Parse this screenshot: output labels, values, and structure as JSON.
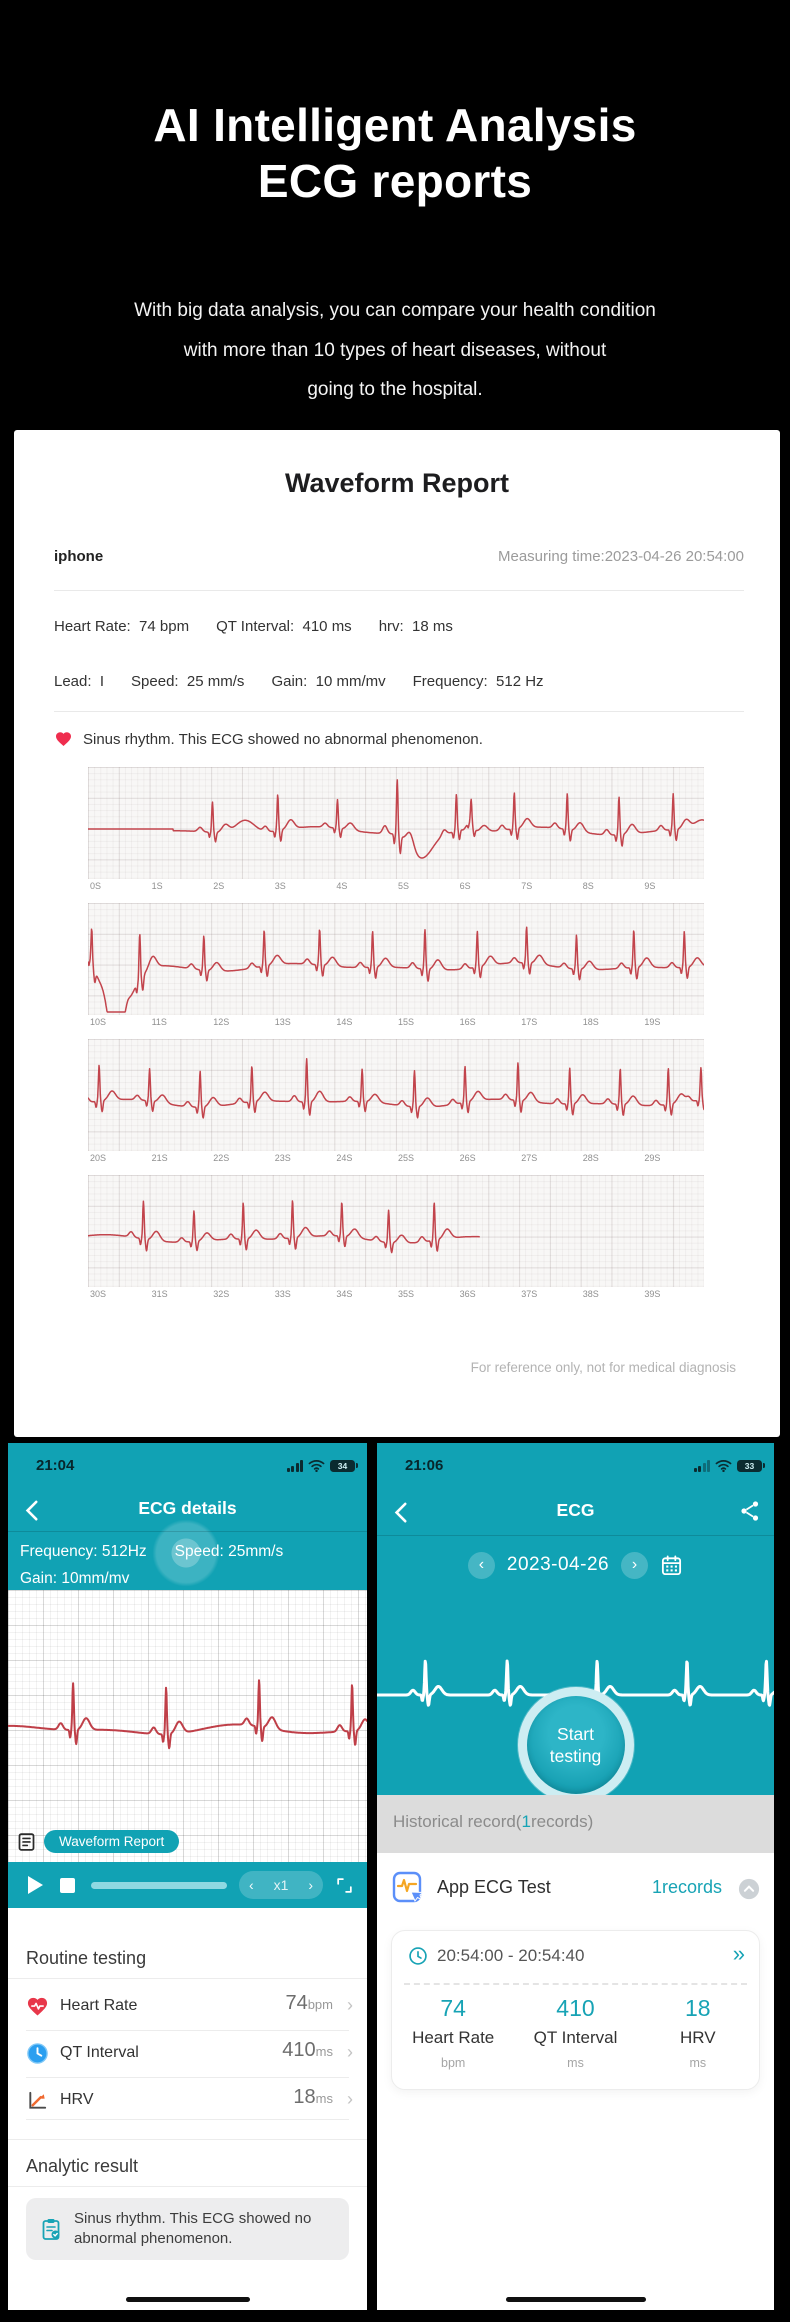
{
  "hero": {
    "title_lines": [
      "AI Intelligent Analysis",
      "ECG reports"
    ],
    "subtitle_lines": [
      "With big data analysis, you can compare your health condition",
      "with more than 10 types of heart diseases, without",
      "going to the hospital."
    ]
  },
  "report": {
    "title": "Waveform Report",
    "device": "iphone",
    "measuring_time": "Measuring time:2023-04-26 20:54:00",
    "metrics_line1": [
      {
        "label": "Heart Rate:",
        "value": "74 bpm"
      },
      {
        "label": "QT Interval:",
        "value": "410 ms"
      },
      {
        "label": "hrv:",
        "value": "18 ms"
      }
    ],
    "metrics_line2": [
      {
        "label": "Lead:",
        "value": "I"
      },
      {
        "label": "Speed:",
        "value": "25 mm/s"
      },
      {
        "label": "Gain:",
        "value": "10 mm/mv"
      },
      {
        "label": "Frequency:",
        "value": "512 Hz"
      }
    ],
    "result": "Sinus rhythm. This ECG showed no abnormal phenomenon.",
    "footnote": "For reference only, not for medical diagnosis"
  },
  "chart_data": {
    "type": "line",
    "title": "ECG waveform strips, lead I, 25 mm/s, 10 mm/mV, 512 Hz",
    "x_unit": "seconds",
    "seconds_per_strip": 10,
    "strips": [
      {
        "t0": 0,
        "ticks": [
          "0S",
          "1S",
          "2S",
          "3S",
          "4S",
          "5S",
          "6S",
          "7S",
          "8S",
          "9S"
        ],
        "flat_until": 1.38,
        "beats": [
          [
            2.02,
            0.85
          ],
          [
            3.08,
            1.0
          ],
          [
            4.05,
            0.8
          ],
          [
            5.02,
            1.55
          ],
          [
            5.98,
            1.0
          ],
          [
            6.22,
            0.7
          ],
          [
            6.92,
            1.0
          ],
          [
            7.78,
            1.0
          ],
          [
            8.62,
            1.05
          ],
          [
            9.5,
            1.0
          ]
        ],
        "extras": [
          [
            2.55,
            0.22,
            14
          ],
          [
            5.42,
            0.25,
            -26
          ],
          [
            9.97,
            0.18,
            10
          ]
        ]
      },
      {
        "t0": 10,
        "ticks": [
          "10S",
          "11S",
          "12S",
          "13S",
          "14S",
          "15S",
          "16S",
          "17S",
          "18S",
          "19S"
        ],
        "beats": [
          [
            10.06,
            1.0
          ],
          [
            10.84,
            1.3
          ],
          [
            11.88,
            0.95
          ],
          [
            12.86,
            1.0
          ],
          [
            13.76,
            1.0
          ],
          [
            14.62,
            1.0
          ],
          [
            15.47,
            1.1
          ],
          [
            16.32,
            1.0
          ],
          [
            17.12,
            1.0
          ],
          [
            17.93,
            0.95
          ],
          [
            18.86,
            1.05
          ],
          [
            19.68,
            1.0
          ]
        ],
        "extras": [
          [
            10.42,
            0.2,
            -60
          ],
          [
            10.62,
            0.3,
            -25
          ],
          [
            10.0,
            0.08,
            8
          ]
        ]
      },
      {
        "t0": 20,
        "ticks": [
          "20S",
          "21S",
          "22S",
          "23S",
          "24S",
          "25S",
          "26S",
          "27S",
          "28S",
          "29S"
        ],
        "beats": [
          [
            20.18,
            1.0
          ],
          [
            21.0,
            0.9
          ],
          [
            21.82,
            1.0
          ],
          [
            22.66,
            1.0
          ],
          [
            23.55,
            1.2
          ],
          [
            24.45,
            0.9
          ],
          [
            25.3,
            1.0
          ],
          [
            26.12,
            1.0
          ],
          [
            26.98,
            1.05
          ],
          [
            27.82,
            1.0
          ],
          [
            28.64,
            1.0
          ],
          [
            29.42,
            1.0
          ],
          [
            29.95,
            0.9
          ]
        ],
        "extras": []
      },
      {
        "t0": 30,
        "ticks": [
          "30S",
          "31S",
          "32S",
          "33S",
          "34S",
          "35S",
          "36S",
          "37S",
          "38S",
          "39S"
        ],
        "end_at": 36.35,
        "beats": [
          [
            30.9,
            1.05
          ],
          [
            31.72,
            0.85
          ],
          [
            32.52,
            1.0
          ],
          [
            33.32,
            1.05
          ],
          [
            34.12,
            0.95
          ],
          [
            34.88,
            0.9
          ],
          [
            35.62,
            1.05
          ]
        ],
        "extras": []
      }
    ],
    "phone_left_wave": {
      "duration": 5.8,
      "beats": [
        [
          1.05,
          1.0
        ],
        [
          2.55,
          1.0
        ],
        [
          4.05,
          1.0
        ],
        [
          5.55,
          1.0
        ]
      ]
    },
    "phone_right_wave": {
      "duration": 6.4,
      "beats": [
        [
          0.78,
          1.0
        ],
        [
          2.1,
          1.0
        ],
        [
          3.55,
          1.0
        ],
        [
          5.0,
          1.0
        ],
        [
          6.28,
          1.0
        ]
      ]
    }
  },
  "left_phone": {
    "status": {
      "time": "21:04",
      "battery": "34"
    },
    "nav_title": "ECG details",
    "info": {
      "frequency": "Frequency: 512Hz",
      "speed": "Speed: 25mm/s",
      "gain": "Gain: 10mm/mv"
    },
    "tag": "Waveform Report",
    "player": {
      "speed": "x1"
    },
    "routine": {
      "header": "Routine testing",
      "rows": [
        {
          "icon": "heart-icon",
          "label": "Heart Rate",
          "value": "74",
          "unit": "bpm"
        },
        {
          "icon": "clock-icon",
          "label": "QT Interval",
          "value": "410",
          "unit": "ms"
        },
        {
          "icon": "hrv-icon",
          "label": "HRV",
          "value": "18",
          "unit": "ms"
        }
      ]
    },
    "analytic": {
      "header": "Analytic result",
      "text": "Sinus rhythm. This ECG showed no abnormal phenomenon."
    }
  },
  "right_phone": {
    "status": {
      "time": "21:06",
      "battery": "33"
    },
    "nav_title": "ECG",
    "date": "2023-04-26",
    "start_button": {
      "line1": "Start",
      "line2": "testing"
    },
    "history": {
      "prefix": "Historical record(",
      "count": "1",
      "suffix": "records)"
    },
    "app_row": {
      "label": "App ECG Test",
      "records": "1records"
    },
    "record_card": {
      "time_range": "20:54:00 - 20:54:40",
      "stats": [
        {
          "value": "74",
          "label": "Heart Rate",
          "unit": "bpm"
        },
        {
          "value": "410",
          "label": "QT Interval",
          "unit": "ms"
        },
        {
          "value": "18",
          "label": "HRV",
          "unit": "ms"
        }
      ]
    }
  },
  "icons": {
    "back": "‹",
    "prev": "‹",
    "next": "›",
    "row_chevron": "›",
    "double_arrow": "»"
  },
  "colors": {
    "teal": "#11a2b4",
    "teal_text": "#17a3b5",
    "wave_red": "#c2444c",
    "phone_wave_red": "#bf3f48",
    "heart_red": "#e8374a",
    "clock_blue": "#2b9ff0",
    "hrv_orange": "#f06a30",
    "page_bg": "#000000",
    "card_bg": "#ffffff",
    "history_bar": "#dcdcdc"
  }
}
